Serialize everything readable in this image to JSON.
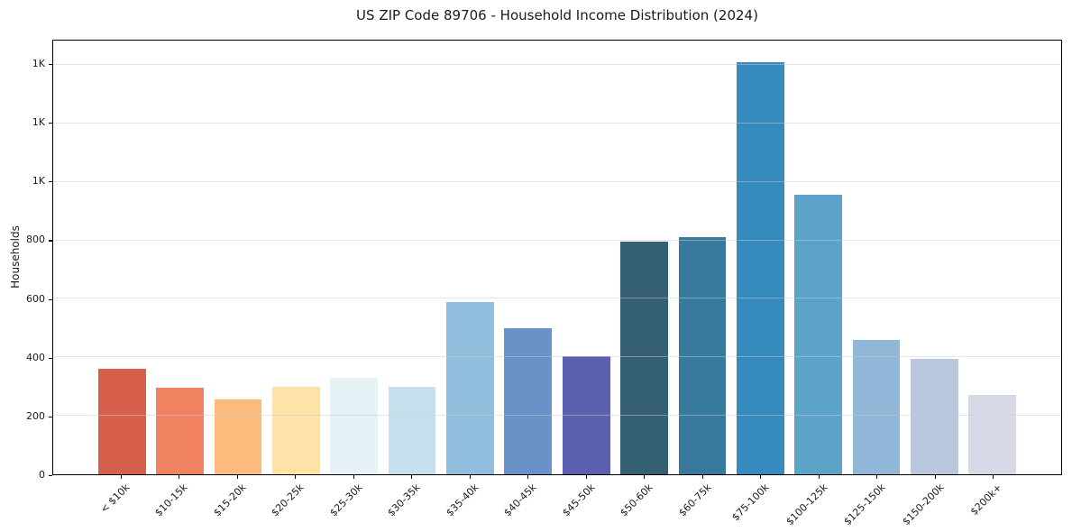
{
  "title": "US ZIP Code 89706 - Household Income Distribution (2024)",
  "chart_data": {
    "type": "bar",
    "title": "US ZIP Code 89706 - Household Income Distribution (2024)",
    "xlabel": "",
    "ylabel": "Households",
    "categories": [
      "< $10k",
      "$10-15k",
      "$15-20k",
      "$20-25k",
      "$25-30k",
      "$30-35k",
      "$35-40k",
      "$40-45k",
      "$45-50k",
      "$50-60k",
      "$60-75k",
      "$75-100k",
      "$100-125k",
      "$125-150k",
      "$150-200k",
      "$200k+"
    ],
    "values": [
      360,
      295,
      255,
      298,
      330,
      300,
      590,
      500,
      405,
      795,
      810,
      1410,
      955,
      460,
      395,
      272
    ],
    "bar_colors": [
      "#d7604d",
      "#f08262",
      "#fbbb7c",
      "#fde3a7",
      "#e6f2f5",
      "#c3e0ec",
      "#92bedd",
      "#6b92c8",
      "#5a5fae",
      "#355f72",
      "#377a9e",
      "#368bbe",
      "#5ba3c9",
      "#90b7d8",
      "#b9c8de",
      "#d8d9e6"
    ],
    "ylim": [
      0,
      1483
    ],
    "yticks": {
      "values": [
        0,
        200,
        400,
        600,
        800,
        1000,
        1200,
        1400
      ],
      "labels": [
        "0",
        "200",
        "400",
        "600",
        "800",
        "1K",
        "1K",
        "1K"
      ]
    },
    "xtick_rotation_deg": 45,
    "grid": "horizontal",
    "grid_color": "#cbcbcb",
    "legend": "none",
    "background_color": "#ffffff",
    "spine_color": "#000000"
  }
}
